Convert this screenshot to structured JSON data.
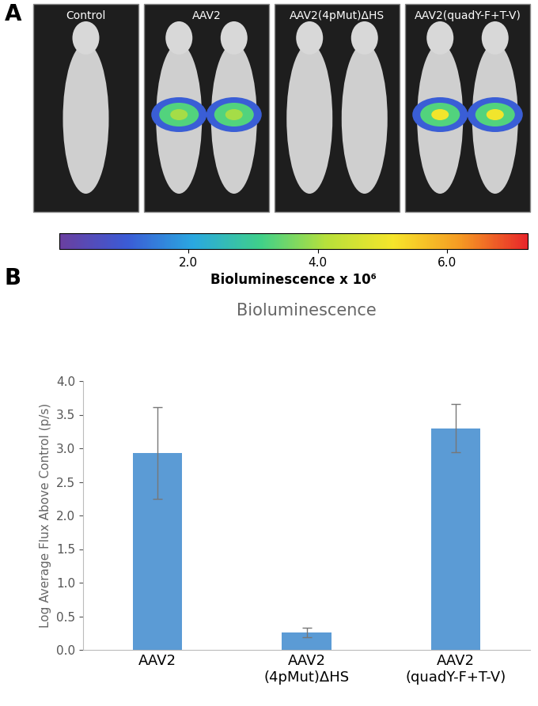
{
  "chart_data": [
    {
      "type": "image_panels",
      "title": "A",
      "panels": [
        "Control",
        "AAV2",
        "AAV2(4pMut)ΔHS",
        "AAV2(quadY-F+T-V)"
      ],
      "colorbar_label": "Bioluminescence x 10⁶",
      "colorbar_range": [
        0,
        7.25
      ],
      "colorbar_ticks": [
        {
          "value": 2,
          "label": "2.0"
        },
        {
          "value": 4,
          "label": "4.0"
        },
        {
          "value": 6,
          "label": "6.0"
        }
      ]
    },
    {
      "type": "bar",
      "title": "B",
      "subtitle": "Bioluminescence",
      "y_label": "Log Average Flux Above Control (p/s)",
      "categories": [
        "AAV2",
        "AAV2\n(4pMut)ΔHS",
        "AAV2\n(quadY-F+T-V)"
      ],
      "values": [
        2.93,
        0.26,
        3.3
      ],
      "errors": [
        0.68,
        0.07,
        0.36
      ],
      "color": "#5b9bd5",
      "ylim": [
        0,
        4
      ],
      "yticks": [
        {
          "value": 0,
          "label": "0.0"
        },
        {
          "value": 0.5,
          "label": "0.5"
        },
        {
          "value": 1,
          "label": "1.0"
        },
        {
          "value": 1.5,
          "label": "1.5"
        },
        {
          "value": 2,
          "label": "2.0"
        },
        {
          "value": 2.5,
          "label": "2.5"
        },
        {
          "value": 3,
          "label": "3.0"
        },
        {
          "value": 3.5,
          "label": "3.5"
        },
        {
          "value": 4,
          "label": "4.0"
        }
      ],
      "grid": false
    }
  ]
}
